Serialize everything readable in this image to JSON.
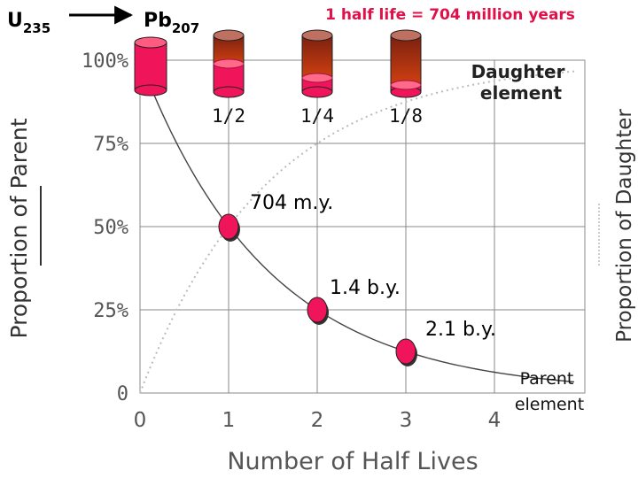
{
  "chart_data": {
    "type": "line",
    "xlabel": "Number of Half Lives",
    "ylabel": "Proportion of Parent",
    "ylabel_right": "Proportion of Daughter",
    "x_ticks": [
      "0",
      "1",
      "2",
      "3",
      "4"
    ],
    "y_ticks": [
      "0",
      "25%",
      "50%",
      "75%",
      "100%"
    ],
    "xlim": [
      0,
      5
    ],
    "ylim": [
      0,
      100
    ],
    "grid": true,
    "series": [
      {
        "name": "Parent element",
        "style": "solid",
        "color": "#444444",
        "x": [
          0,
          0.5,
          1,
          1.5,
          2,
          2.5,
          3,
          3.5,
          4,
          4.5
        ],
        "y": [
          100,
          70.7,
          50,
          35.4,
          25,
          17.7,
          12.5,
          8.8,
          6.25,
          4.4
        ]
      },
      {
        "name": "Daughter element",
        "style": "dotted",
        "color": "#bbbbbb",
        "x": [
          0,
          0.5,
          1,
          1.5,
          2,
          2.5,
          3,
          3.5,
          4,
          4.5
        ],
        "y": [
          0,
          29.3,
          50,
          64.6,
          75,
          82.3,
          87.5,
          91.2,
          93.75,
          95.6
        ]
      }
    ],
    "markers": [
      {
        "x": 1,
        "y": 50,
        "label": "704 m.y."
      },
      {
        "x": 2,
        "y": 25,
        "label": "1.4 b.y."
      },
      {
        "x": 3,
        "y": 12.5,
        "label": "2.1 b.y."
      }
    ],
    "annotations": {
      "parent_label": [
        "Parent",
        "element"
      ],
      "daughter_label": [
        "Daughter",
        "element"
      ],
      "half_life": "1 half life = 704 million years",
      "parent_isotope": {
        "symbol": "U",
        "mass": "235"
      },
      "daughter_isotope": {
        "symbol": "Pb",
        "mass": "207"
      }
    },
    "cylinders": [
      {
        "x": 0,
        "parent_fraction": 1.0,
        "label": ""
      },
      {
        "x": 1,
        "parent_fraction": 0.5,
        "label": "1/2"
      },
      {
        "x": 2,
        "parent_fraction": 0.25,
        "label": "1/4"
      },
      {
        "x": 3,
        "parent_fraction": 0.125,
        "label": "1/8"
      }
    ],
    "colors": {
      "parent": "#f0145a",
      "daughter": "#a83010",
      "axis_text": "#555555"
    }
  }
}
